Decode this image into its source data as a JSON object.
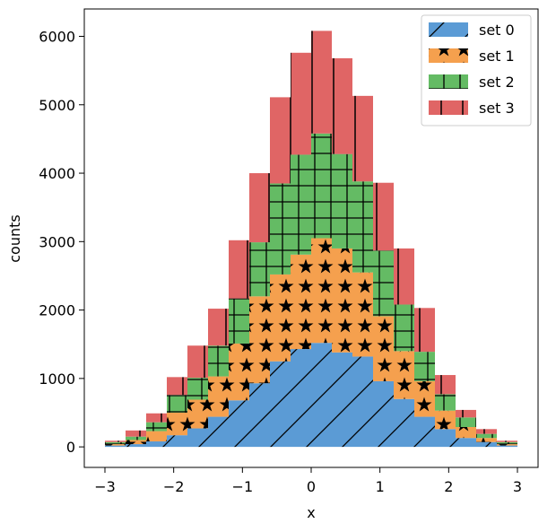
{
  "chart_data": {
    "type": "histogram-stacked",
    "xlabel": "x",
    "ylabel": "counts",
    "xlim": [
      -3.3,
      3.3
    ],
    "ylim": [
      -300,
      6400
    ],
    "x_ticks": [
      -3,
      -2,
      -1,
      0,
      1,
      2,
      3
    ],
    "x_tick_labels": [
      "−3",
      "−2",
      "−1",
      "0",
      "1",
      "2",
      "3"
    ],
    "y_ticks": [
      0,
      1000,
      2000,
      3000,
      4000,
      5000,
      6000
    ],
    "y_tick_labels": [
      "0",
      "1000",
      "2000",
      "3000",
      "4000",
      "5000",
      "6000"
    ],
    "bin_edges": [
      -3.0,
      -2.7,
      -2.4,
      -2.1,
      -1.8,
      -1.5,
      -1.2,
      -0.9,
      -0.6,
      -0.3,
      0.0,
      0.3,
      0.6,
      0.9,
      1.2,
      1.5,
      1.8,
      2.1,
      2.4,
      2.7,
      3.0
    ],
    "series": [
      {
        "name": "set 0",
        "color": "#5b9bd5",
        "hatch": "diagonal",
        "values": [
          20,
          40,
          80,
          170,
          270,
          440,
          680,
          930,
          1250,
          1430,
          1520,
          1380,
          1320,
          960,
          700,
          440,
          260,
          130,
          70,
          20
        ]
      },
      {
        "name": "set 1",
        "color": "#f5a04e",
        "hatch": "stars",
        "values": [
          20,
          60,
          150,
          330,
          420,
          590,
          830,
          1270,
          1270,
          1380,
          1530,
          1520,
          1230,
          950,
          700,
          520,
          270,
          160,
          60,
          20
        ]
      },
      {
        "name": "set 2",
        "color": "#64bb64",
        "hatch": "grid",
        "values": [
          30,
          50,
          130,
          260,
          320,
          450,
          660,
          790,
          1330,
          1460,
          1530,
          1380,
          1330,
          960,
          680,
          430,
          240,
          140,
          60,
          30
        ]
      },
      {
        "name": "set 3",
        "color": "#e06565",
        "hatch": "vertical-bars",
        "values": [
          20,
          90,
          130,
          260,
          470,
          540,
          850,
          1010,
          1260,
          1490,
          1500,
          1400,
          1250,
          990,
          820,
          640,
          280,
          110,
          70,
          20
        ]
      }
    ],
    "legend": {
      "placement": "top-right"
    },
    "grid": false
  }
}
